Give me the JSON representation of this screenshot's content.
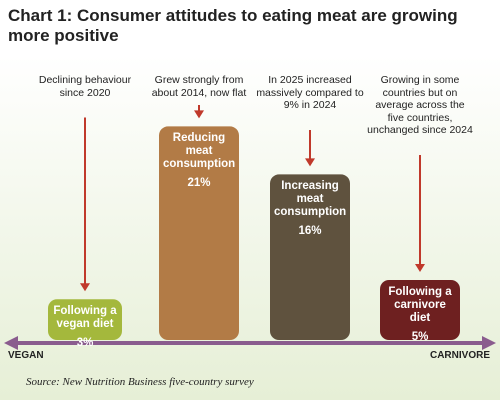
{
  "chart_data": {
    "type": "bar",
    "title": "Chart 1: Consumer attitudes to eating meat are growing more positive",
    "categories": [
      "Following a vegan diet",
      "Reducing meat consumption",
      "Increasing meat consumption",
      "Following a carnivore diet"
    ],
    "values": [
      3,
      21,
      16,
      5
    ],
    "value_labels": [
      "3%",
      "21%",
      "16%",
      "5%"
    ],
    "colors": [
      "#a4b83c",
      "#b27b46",
      "#5f523e",
      "#6e2020"
    ],
    "annotations": [
      "Declining behaviour since 2020",
      "Grew strongly from about 2014, now flat",
      "In 2025 increased massively compared to 9% in 2024",
      "Growing in some countries but on average across the five countries, unchanged since 2024"
    ],
    "x_axis_left": "VEGAN",
    "x_axis_right": "CARNIVORE",
    "source": "Source: New Nutrition Business five-country survey"
  }
}
